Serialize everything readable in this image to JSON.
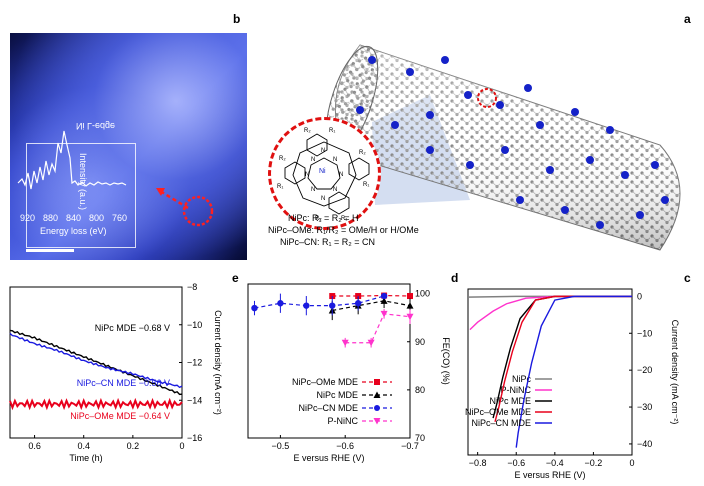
{
  "panel_labels": {
    "a": "a",
    "b": "b",
    "c": "c",
    "d": "d",
    "e": "e"
  },
  "panel_b": {
    "inset_title": "Ni L-edge",
    "inset_ylabel": "Intensity (a.u.)",
    "inset_xticks": [
      "920",
      "880",
      "840",
      "800",
      "760"
    ],
    "inset_xlabel": "Energy loss (eV)"
  },
  "panel_a": {
    "molecule_n_labels": [
      "N",
      "N",
      "N",
      "N",
      "N",
      "N",
      "N",
      "N"
    ],
    "metal_label": "Ni",
    "substituent_labels": [
      "R₂",
      "R₁",
      "R₂",
      "R₁",
      "R₁",
      "R₂",
      "R₁",
      "R₂"
    ],
    "formula_lines": [
      "NiPc: R₁ = R₂ = H",
      "NiPc–OMe: R₁/R₂ = OMe/H or H/OMe",
      "NiPc–CN: R₁ = R₂ = CN"
    ]
  },
  "colors": {
    "nipc": "#808080",
    "p_ninc": "#ff33cc",
    "nipc_mde": "#000000",
    "nipc_ome_mde": "#e8001c",
    "nipc_cn_mde": "#1a1adf",
    "dashed_circle": "#e01010"
  },
  "chart_data": [
    {
      "panel": "c",
      "type": "line",
      "xlabel": "E versus RHE (V)",
      "ylabel": "Current density (mA cm⁻²)",
      "xlim": [
        0.0,
        -0.85
      ],
      "ylim": [
        2,
        -43
      ],
      "xticks": [
        "0",
        "−0.2",
        "−0.4",
        "−0.6",
        "−0.8"
      ],
      "yticks": [
        "0",
        "−10",
        "−20",
        "−30",
        "−40"
      ],
      "series": [
        {
          "name": "NiPc",
          "color": "#808080",
          "x": [
            0.0,
            -0.2,
            -0.4,
            -0.6,
            -0.85
          ],
          "y": [
            0,
            0,
            0,
            0,
            -0.2
          ]
        },
        {
          "name": "P-NiNC",
          "color": "#ff33cc",
          "x": [
            0.0,
            -0.4,
            -0.55,
            -0.65,
            -0.72,
            -0.8,
            -0.84
          ],
          "y": [
            0,
            0,
            -0.5,
            -2,
            -4,
            -7,
            -9
          ]
        },
        {
          "name": "NiPc MDE",
          "color": "#000000",
          "x": [
            0.0,
            -0.4,
            -0.5,
            -0.58,
            -0.63,
            -0.67,
            -0.7,
            -0.72
          ],
          "y": [
            0,
            0,
            -1,
            -6,
            -14,
            -22,
            -29,
            -33
          ]
        },
        {
          "name": "NiPc–OMe MDE",
          "color": "#e8001c",
          "x": [
            0.0,
            -0.4,
            -0.5,
            -0.57,
            -0.62,
            -0.66,
            -0.69,
            -0.71
          ],
          "y": [
            0,
            0,
            -1,
            -7,
            -15,
            -23,
            -30,
            -34
          ]
        },
        {
          "name": "NiPc–CN MDE",
          "color": "#1a1adf",
          "x": [
            0.0,
            -0.3,
            -0.4,
            -0.47,
            -0.52,
            -0.56,
            -0.59,
            -0.6
          ],
          "y": [
            0,
            0,
            -1,
            -8,
            -18,
            -28,
            -37,
            -41
          ]
        }
      ]
    },
    {
      "panel": "d",
      "type": "scatter",
      "xlabel": "E versus RHE (V)",
      "ylabel": "FE(CO) (%)",
      "xlim": [
        -0.45,
        -0.7
      ],
      "ylim": [
        70,
        102
      ],
      "xticks": [
        "−0.5",
        "−0.6",
        "−0.7"
      ],
      "yticks": [
        "70",
        "80",
        "90",
        "100"
      ],
      "series": [
        {
          "name": "NiPc–OMe MDE",
          "color": "#e8001c",
          "marker": "square",
          "x": [
            -0.58,
            -0.62,
            -0.66,
            -0.7
          ],
          "y": [
            99.5,
            99.5,
            99.6,
            99.5
          ],
          "err": [
            0.4,
            0.4,
            0.4,
            0.4
          ]
        },
        {
          "name": "NiPc MDE",
          "color": "#000000",
          "marker": "triangle",
          "x": [
            -0.58,
            -0.62,
            -0.66,
            -0.7
          ],
          "y": [
            96.5,
            97.5,
            98.5,
            97.5
          ],
          "err": [
            2.0,
            1.8,
            1.5,
            1.5
          ]
        },
        {
          "name": "NiPc–CN MDE",
          "color": "#1a1adf",
          "marker": "circle",
          "x": [
            -0.46,
            -0.5,
            -0.54,
            -0.58,
            -0.62,
            -0.66
          ],
          "y": [
            97,
            98,
            97.5,
            97.5,
            98,
            99.5
          ],
          "err": [
            1.5,
            2.0,
            2.0,
            2.0,
            1.5,
            0.5
          ]
        },
        {
          "name": "P-NiNC",
          "color": "#ff33cc",
          "marker": "triangle-down",
          "x": [
            -0.6,
            -0.64,
            -0.66,
            -0.7
          ],
          "y": [
            89.8,
            89.8,
            95.8,
            95.2
          ],
          "err": [
            1.0,
            1.0,
            1.0,
            1.5
          ]
        }
      ]
    },
    {
      "panel": "e",
      "type": "line",
      "xlabel": "Time (h)",
      "ylabel": "Current density (mA cm⁻²)",
      "xlim": [
        0.7,
        0
      ],
      "ylim": [
        -8,
        -16
      ],
      "xticks": [
        "0.6",
        "0.4",
        "0.2",
        "0"
      ],
      "yticks": [
        "−8",
        "−10",
        "−12",
        "−14",
        "−16"
      ],
      "series": [
        {
          "name": "NiPc MDE −0.68 V",
          "label": "NiPc MDE −0.68 V",
          "color": "#000000",
          "x": [
            0.7,
            0.6,
            0.5,
            0.4,
            0.3,
            0.2,
            0.1,
            0.0
          ],
          "y": [
            -10.3,
            -10.7,
            -11.2,
            -11.7,
            -12.2,
            -12.7,
            -13.2,
            -13.7
          ]
        },
        {
          "name": "NiPc–CN MDE −0.56 V",
          "label": "NiPc–CN MDE −0.56 V",
          "color": "#1a1adf",
          "x": [
            0.7,
            0.6,
            0.5,
            0.4,
            0.3,
            0.2,
            0.1,
            0.0
          ],
          "y": [
            -10.5,
            -11.0,
            -11.4,
            -11.9,
            -12.3,
            -12.6,
            -13.0,
            -13.3
          ]
        },
        {
          "name": "NiPc–OMe MDE −0.64 V",
          "label": "NiPc–OMe MDE −0.64 V",
          "color": "#e8001c",
          "x": [
            0.7,
            0.6,
            0.5,
            0.4,
            0.3,
            0.2,
            0.1,
            0.0
          ],
          "y": [
            -14.2,
            -14.2,
            -14.2,
            -14.2,
            -14.2,
            -14.2,
            -14.2,
            -14.2
          ]
        }
      ]
    }
  ]
}
